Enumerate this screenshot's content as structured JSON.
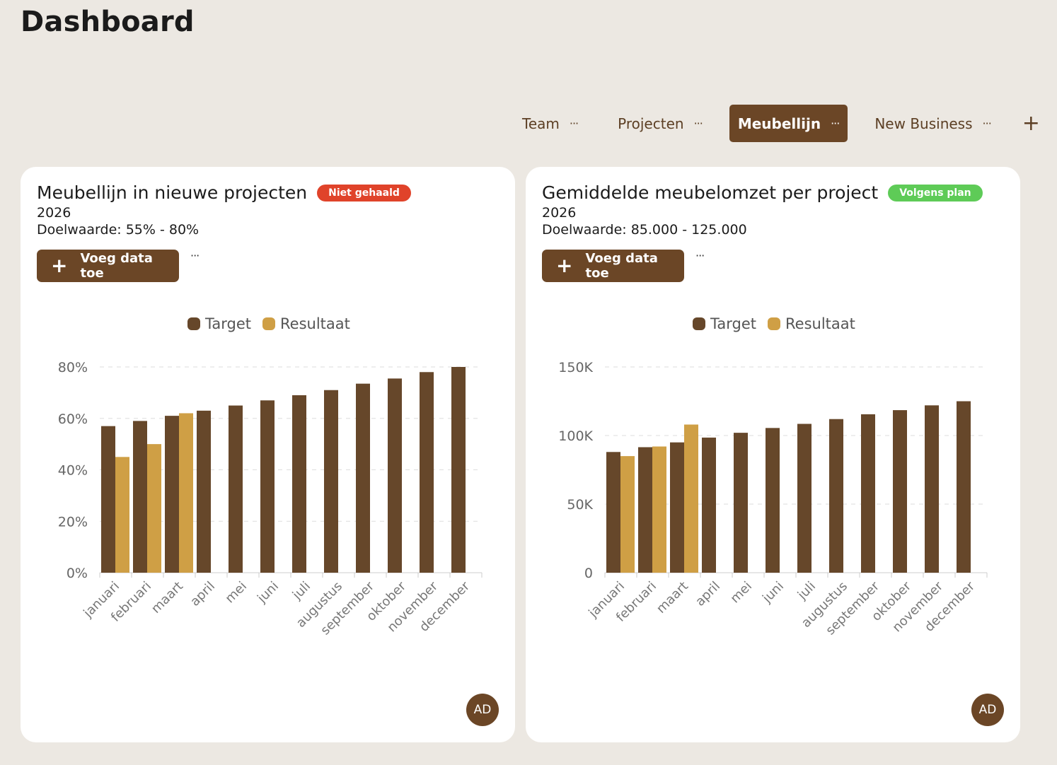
{
  "page": {
    "title": "Dashboard"
  },
  "tabs": [
    {
      "label": "Team",
      "menu": "···",
      "active": false
    },
    {
      "label": "Projecten",
      "menu": "···",
      "active": false
    },
    {
      "label": "Meubellijn",
      "menu": "···",
      "active": true
    },
    {
      "label": "New Business",
      "menu": "···",
      "active": false
    }
  ],
  "tab_add": "+",
  "colors": {
    "target": "#66472a",
    "resultaat": "#cf9f45",
    "accent": "#6b4626",
    "badge_red": "#e0432a",
    "badge_green": "#5ecb57"
  },
  "cards": [
    {
      "title": "Meubellijn in nieuwe projecten",
      "badge": "Niet gehaald",
      "badge_color": "#e0432a",
      "year": "2026",
      "target_text": "Doelwaarde: 55% - 80%",
      "add_button": "Voeg data toe",
      "more": "···",
      "avatar": "AD"
    },
    {
      "title": "Gemiddelde meubelomzet per project",
      "badge": "Volgens plan",
      "badge_color": "#5ecb57",
      "year": "2026",
      "target_text": "Doelwaarde: 85.000 - 125.000",
      "add_button": "Voeg data toe",
      "more": "···",
      "avatar": "AD"
    }
  ],
  "chart_data": [
    {
      "type": "bar",
      "legend": [
        "Target",
        "Resultaat"
      ],
      "legend_position": "top-center",
      "categories": [
        "januari",
        "februari",
        "maart",
        "april",
        "mei",
        "juni",
        "juli",
        "augustus",
        "september",
        "oktober",
        "november",
        "december"
      ],
      "series": [
        {
          "name": "Target",
          "values": [
            57,
            59,
            61,
            63,
            65,
            67,
            69,
            71,
            73.5,
            75.5,
            78,
            80
          ]
        },
        {
          "name": "Resultaat",
          "values": [
            45,
            50,
            62,
            null,
            null,
            null,
            null,
            null,
            null,
            null,
            null,
            null
          ]
        }
      ],
      "yticks": [
        "0%",
        "20%",
        "40%",
        "60%",
        "80%"
      ],
      "ylim": [
        0,
        80
      ],
      "grid": true
    },
    {
      "type": "bar",
      "legend": [
        "Target",
        "Resultaat"
      ],
      "legend_position": "top-center",
      "categories": [
        "januari",
        "februari",
        "maart",
        "april",
        "mei",
        "juni",
        "juli",
        "augustus",
        "september",
        "oktober",
        "november",
        "december"
      ],
      "series": [
        {
          "name": "Target",
          "values": [
            88000,
            91500,
            95000,
            98500,
            102000,
            105500,
            108500,
            112000,
            115500,
            118500,
            122000,
            125000
          ]
        },
        {
          "name": "Resultaat",
          "values": [
            85000,
            92000,
            108000,
            null,
            null,
            null,
            null,
            null,
            null,
            null,
            null,
            null
          ]
        }
      ],
      "yticks": [
        "0",
        "50K",
        "100K",
        "150K"
      ],
      "ylim": [
        0,
        150000
      ],
      "grid": true
    }
  ]
}
